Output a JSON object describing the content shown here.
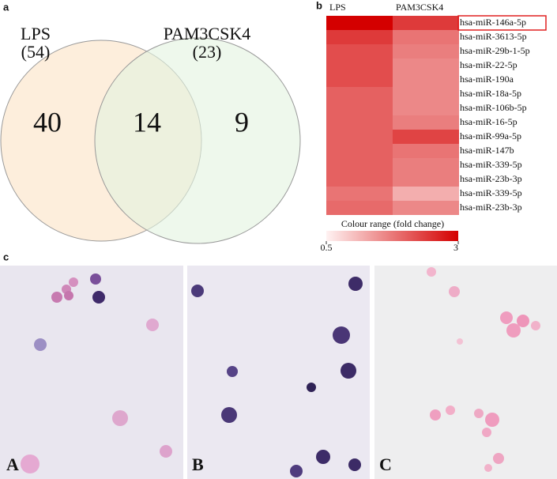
{
  "panels": {
    "a": {
      "label": "a",
      "sets": [
        {
          "name": "LPS",
          "total": "(54)",
          "only": 40
        },
        {
          "name": "PAM3CSK4",
          "total": "(23)",
          "only": 9
        }
      ],
      "overlap": 14
    },
    "b": {
      "label": "b",
      "columns": [
        "LPS",
        "PAM3CSK4"
      ],
      "rows": [
        "hsa-miR-146a-5p",
        "hsa-miR-3613-5p",
        "hsa-miR-29b-1-5p",
        "hsa-miR-22-5p",
        "hsa-miR-190a",
        "hsa-miR-18a-5p",
        "hsa-miR-106b-5p",
        "hsa-miR-16-5p",
        "hsa-miR-99a-5p",
        "hsa-miR-147b",
        "hsa-miR-339-5p",
        "hsa-miR-23b-3p",
        "hsa-miR-339-5p",
        "hsa-miR-23b-3p"
      ],
      "values": [
        [
          3.0,
          2.4
        ],
        [
          2.4,
          1.8
        ],
        [
          2.2,
          1.7
        ],
        [
          2.2,
          1.6
        ],
        [
          2.2,
          1.6
        ],
        [
          2.0,
          1.6
        ],
        [
          2.0,
          1.6
        ],
        [
          2.0,
          1.7
        ],
        [
          2.0,
          2.3
        ],
        [
          2.0,
          1.8
        ],
        [
          2.0,
          1.7
        ],
        [
          2.0,
          1.7
        ],
        [
          1.8,
          1.2
        ],
        [
          1.9,
          1.6
        ]
      ],
      "scale_title": "Colour range (fold change)",
      "scale_range": [
        0.5,
        3
      ],
      "scale_ticks": [
        0.5,
        3
      ]
    },
    "c": {
      "label": "c",
      "images": [
        "A",
        "B",
        "C"
      ]
    }
  }
}
